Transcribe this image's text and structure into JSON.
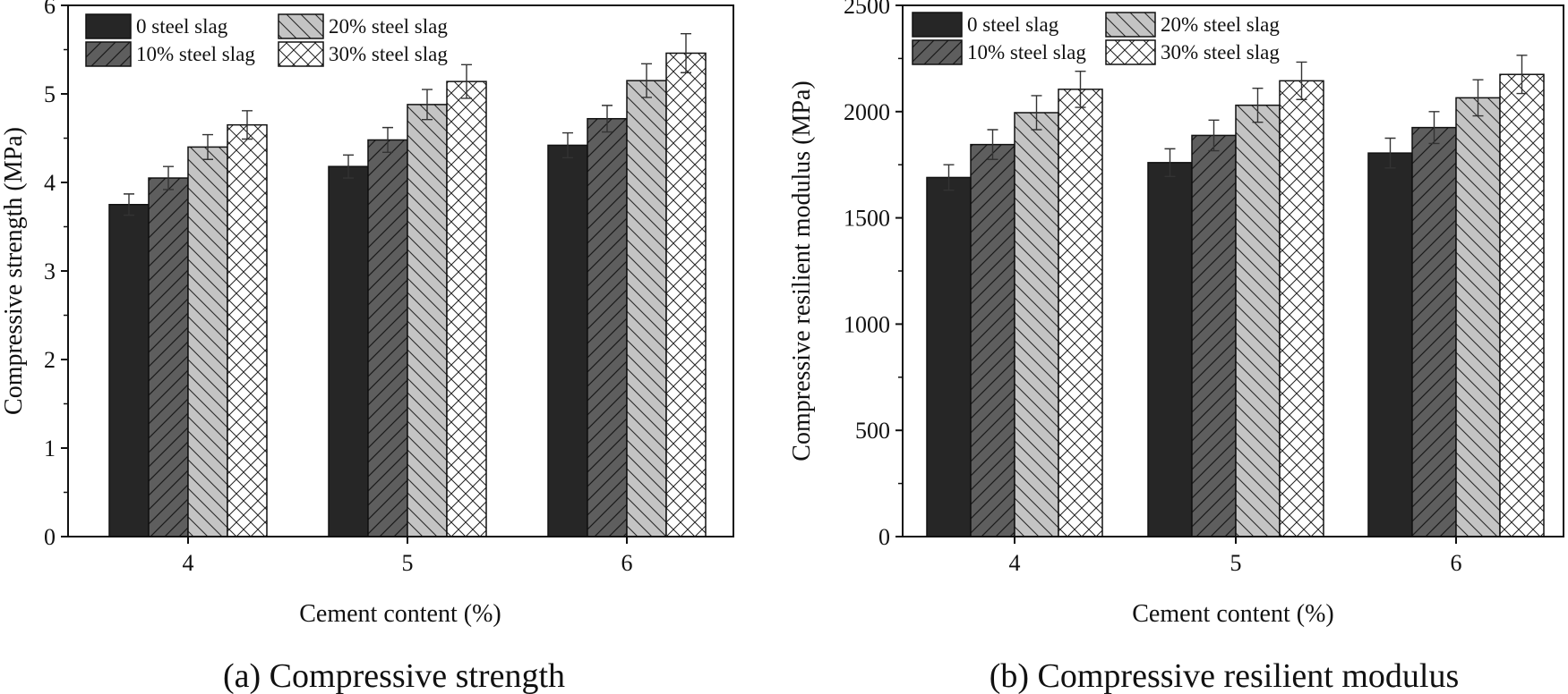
{
  "colors": {
    "slag_0": "#262626",
    "slag_10": "#5e5e5e",
    "slag_20": "#c4c4c4",
    "slag_30": "#ffffff",
    "line": "#111111"
  },
  "chart_data": [
    {
      "type": "bar",
      "title": "",
      "caption": "(a) Compressive strength",
      "xlabel": "Cement content (%)",
      "ylabel": "Compressive strength (MPa)",
      "categories": [
        "4",
        "5",
        "6"
      ],
      "ylim": [
        0,
        6
      ],
      "yticks": [
        "0",
        "1",
        "2",
        "3",
        "4",
        "5",
        "6"
      ],
      "grid": false,
      "legend_position": "top-left",
      "series": [
        {
          "name": "0 steel slag",
          "pattern": "solid",
          "values": [
            3.75,
            4.18,
            4.42
          ],
          "errors": [
            0.12,
            0.13,
            0.14
          ]
        },
        {
          "name": "10% steel slag",
          "pattern": "hatch-dark",
          "values": [
            4.05,
            4.48,
            4.72
          ],
          "errors": [
            0.13,
            0.14,
            0.15
          ]
        },
        {
          "name": "20% steel slag",
          "pattern": "hatch-light",
          "values": [
            4.4,
            4.88,
            5.15
          ],
          "errors": [
            0.14,
            0.17,
            0.19
          ]
        },
        {
          "name": "30% steel slag",
          "pattern": "crosshatch",
          "values": [
            4.65,
            5.14,
            5.46
          ],
          "errors": [
            0.16,
            0.19,
            0.22
          ]
        }
      ]
    },
    {
      "type": "bar",
      "title": "",
      "caption": "(b) Compressive resilient modulus",
      "xlabel": "Cement content (%)",
      "ylabel": "Compressive resilient modulus (MPa)",
      "categories": [
        "4",
        "5",
        "6"
      ],
      "ylim": [
        0,
        2500
      ],
      "yticks": [
        "0",
        "500",
        "1000",
        "1500",
        "2000",
        "2500"
      ],
      "grid": false,
      "legend_position": "top-left",
      "series": [
        {
          "name": "0 steel slag",
          "pattern": "solid",
          "values": [
            1690,
            1760,
            1805
          ],
          "errors": [
            60,
            65,
            70
          ]
        },
        {
          "name": "10% steel slag",
          "pattern": "hatch-dark",
          "values": [
            1845,
            1888,
            1925
          ],
          "errors": [
            70,
            72,
            75
          ]
        },
        {
          "name": "20% steel slag",
          "pattern": "hatch-light",
          "values": [
            1995,
            2030,
            2065
          ],
          "errors": [
            80,
            80,
            85
          ]
        },
        {
          "name": "30% steel slag",
          "pattern": "crosshatch",
          "values": [
            2105,
            2145,
            2175
          ],
          "errors": [
            85,
            88,
            90
          ]
        }
      ]
    }
  ]
}
